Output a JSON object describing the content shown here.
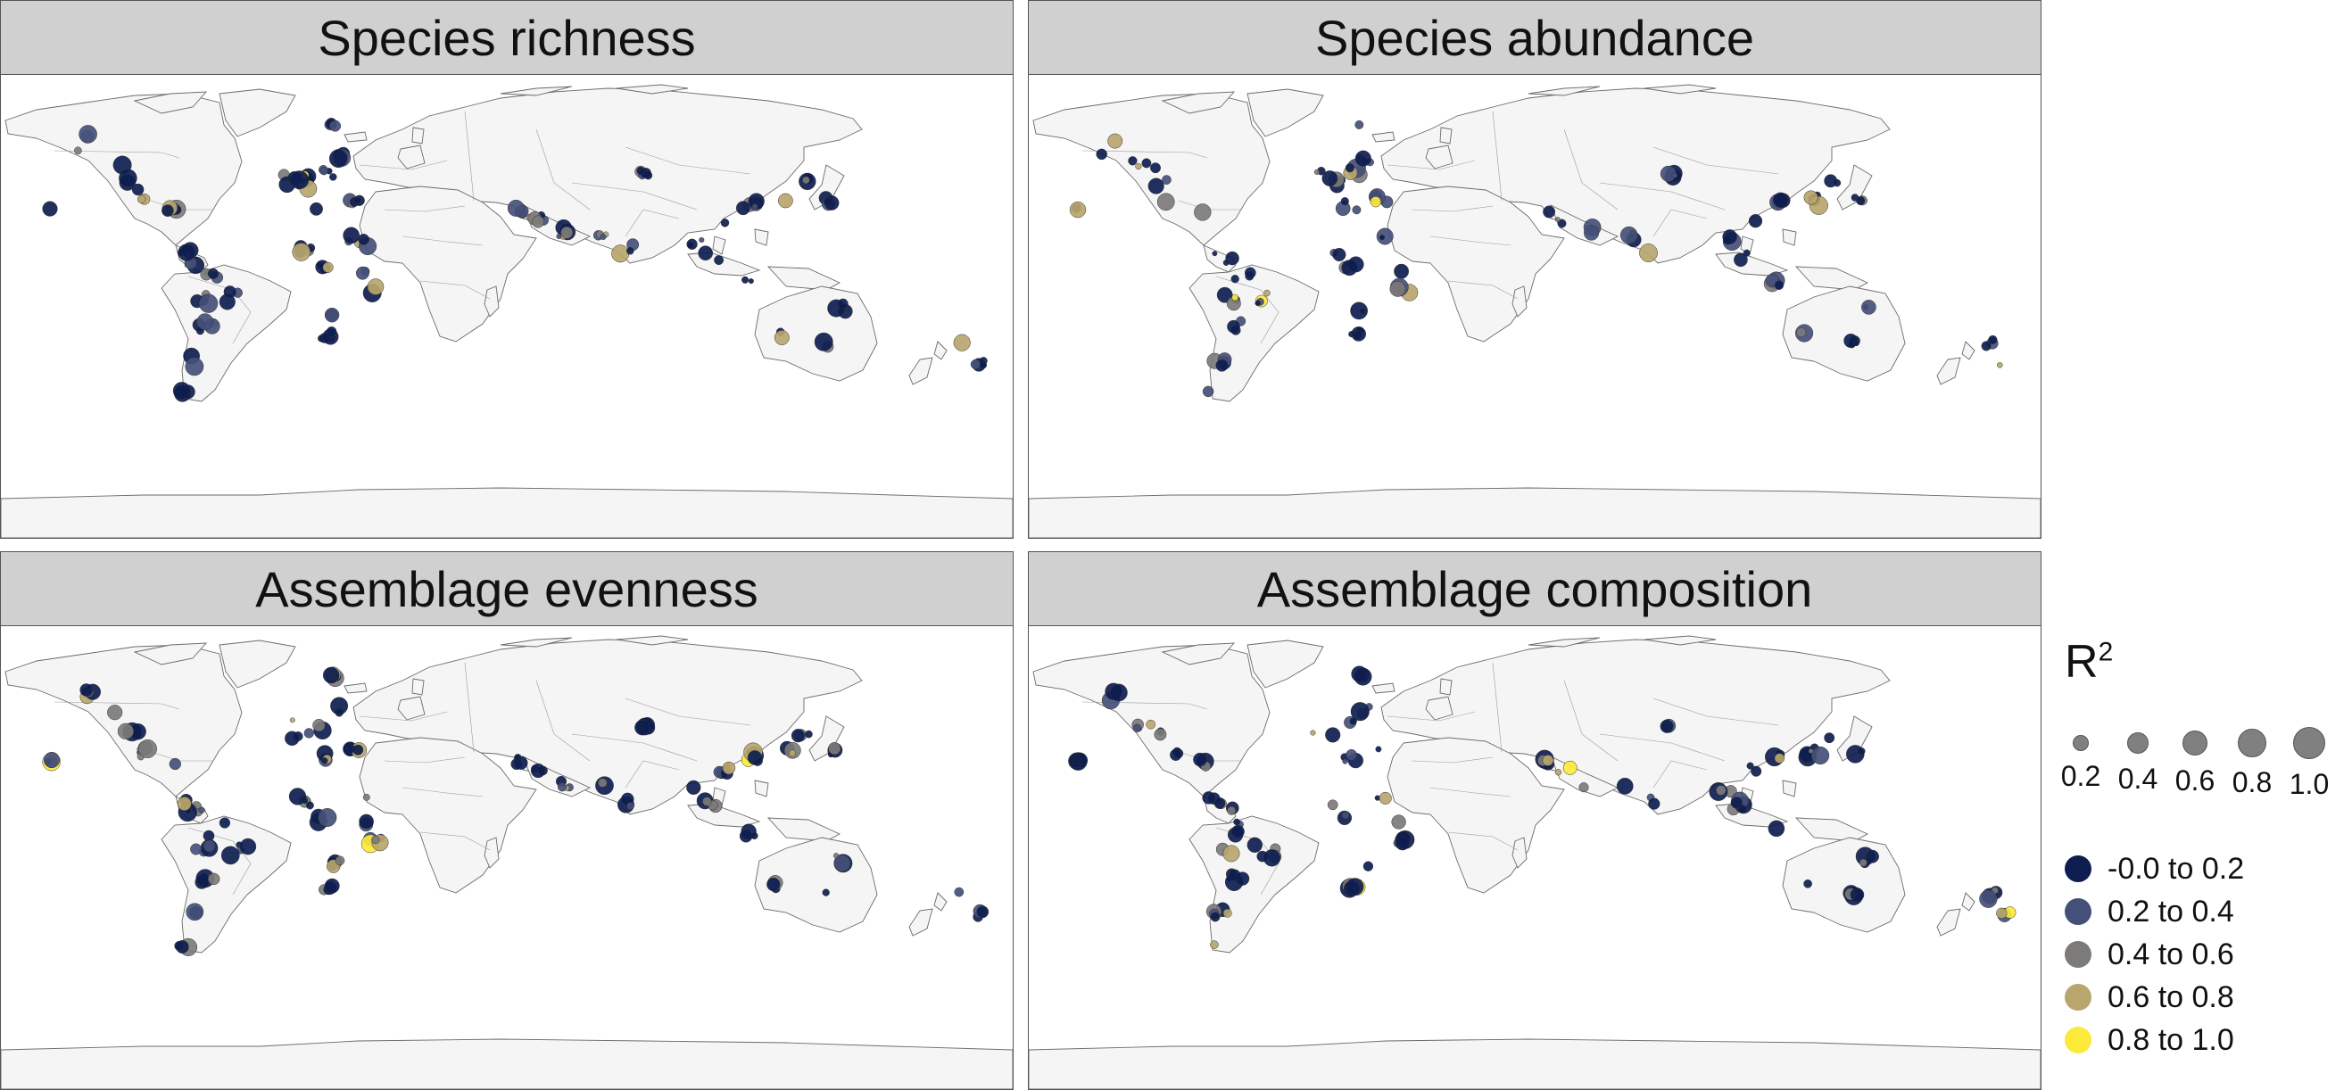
{
  "panels": [
    {
      "title": "Species richness"
    },
    {
      "title": "Species abundance"
    },
    {
      "title": "Assemblage evenness"
    },
    {
      "title": "Assemblage composition"
    }
  ],
  "legend": {
    "title": "R",
    "title_sup": "2",
    "size_values": [
      "0.2",
      "0.4",
      "0.6",
      "0.8",
      "1.0"
    ],
    "categories": [
      {
        "label": "-0.0 to 0.2",
        "color": "#0d1d4f"
      },
      {
        "label": "0.2 to 0.4",
        "color": "#45507a"
      },
      {
        "label": "0.4 to 0.6",
        "color": "#7c7b7a"
      },
      {
        "label": "0.6 to 0.8",
        "color": "#b8a66d"
      },
      {
        "label": "0.8 to 1.0",
        "color": "#fde93a"
      }
    ]
  }
}
